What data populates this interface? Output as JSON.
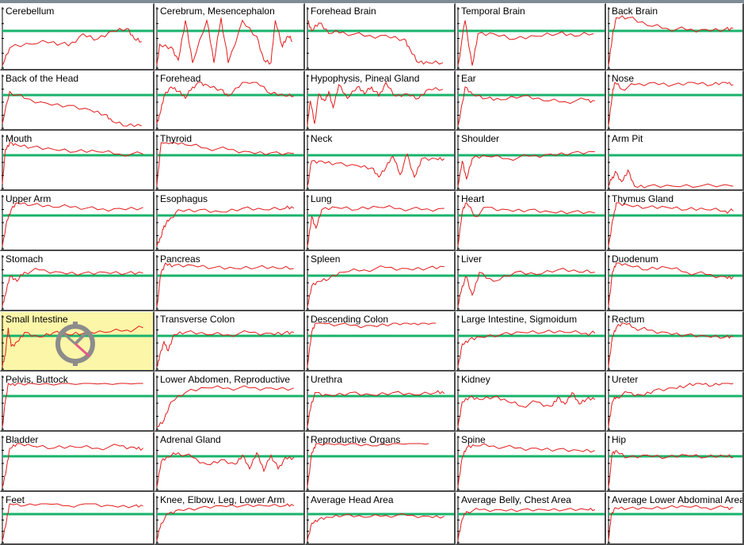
{
  "colors": {
    "baseline": "#19b36b",
    "trace": "#e21a1a",
    "selected_background": "#fbf6a8",
    "frame": "#4a4a4a"
  },
  "selected_cell": "Small Intestine",
  "busy_indicator": {
    "icon": "busy-cursor-icon",
    "shown_on": "Small Intestine"
  },
  "cells": [
    {
      "label": "Cerebellum"
    },
    {
      "label": "Cerebrum, Mesencephalon"
    },
    {
      "label": "Forehead Brain"
    },
    {
      "label": "Temporal Brain"
    },
    {
      "label": "Back Brain"
    },
    {
      "label": "Back of the Head"
    },
    {
      "label": "Forehead"
    },
    {
      "label": "Hypophysis, Pineal Gland"
    },
    {
      "label": "Ear"
    },
    {
      "label": "Nose"
    },
    {
      "label": "Mouth"
    },
    {
      "label": "Thyroid"
    },
    {
      "label": "Neck"
    },
    {
      "label": "Shoulder"
    },
    {
      "label": "Arm Pit"
    },
    {
      "label": "Upper Arm"
    },
    {
      "label": "Esophagus"
    },
    {
      "label": "Lung"
    },
    {
      "label": "Heart"
    },
    {
      "label": "Thymus Gland"
    },
    {
      "label": "Stomach"
    },
    {
      "label": "Pancreas"
    },
    {
      "label": "Spleen"
    },
    {
      "label": "Liver"
    },
    {
      "label": "Duodenum"
    },
    {
      "label": "Small Intestine"
    },
    {
      "label": "Transverse Colon"
    },
    {
      "label": "Descending Colon"
    },
    {
      "label": "Large Intestine, Sigmoidum"
    },
    {
      "label": "Rectum"
    },
    {
      "label": "Pelvis, Buttock"
    },
    {
      "label": "Lower Abdomen, Reproductive"
    },
    {
      "label": "Urethra"
    },
    {
      "label": "Kidney"
    },
    {
      "label": "Ureter"
    },
    {
      "label": "Bladder"
    },
    {
      "label": "Adrenal Gland"
    },
    {
      "label": "Reproductive Organs"
    },
    {
      "label": "Spine"
    },
    {
      "label": "Hip"
    },
    {
      "label": "Feet"
    },
    {
      "label": "Knee, Elbow, Leg, Lower Arm"
    },
    {
      "label": "Average Head Area"
    },
    {
      "label": "Average Belly, Chest Area"
    },
    {
      "label": "Average Lower Abdominal Area"
    }
  ]
}
